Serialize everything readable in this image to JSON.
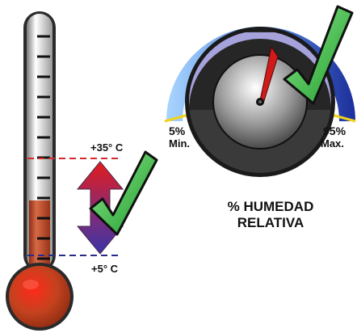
{
  "thermometer": {
    "max_label": "+35° C",
    "min_label": "+5° C",
    "tube_color": "#c4502c",
    "max_line_color": "#d42a2a",
    "min_line_color": "#2a2a8a",
    "arrow_top_color": "#e01e1e",
    "arrow_bottom_color": "#3a34a8"
  },
  "hygrometer": {
    "min_percent": "5%",
    "min_label": "Min.",
    "max_percent": "95%",
    "max_label": "Max.",
    "title_line1": "% HUMEDAD",
    "title_line2": "RELATIVA",
    "needle_color": "#d21a1a",
    "arc_color": "#4a78d4"
  },
  "icons": [
    "thermometer-icon",
    "hygrometer-gauge-icon",
    "checkmark-icon"
  ],
  "check_color": "#2fb82f"
}
